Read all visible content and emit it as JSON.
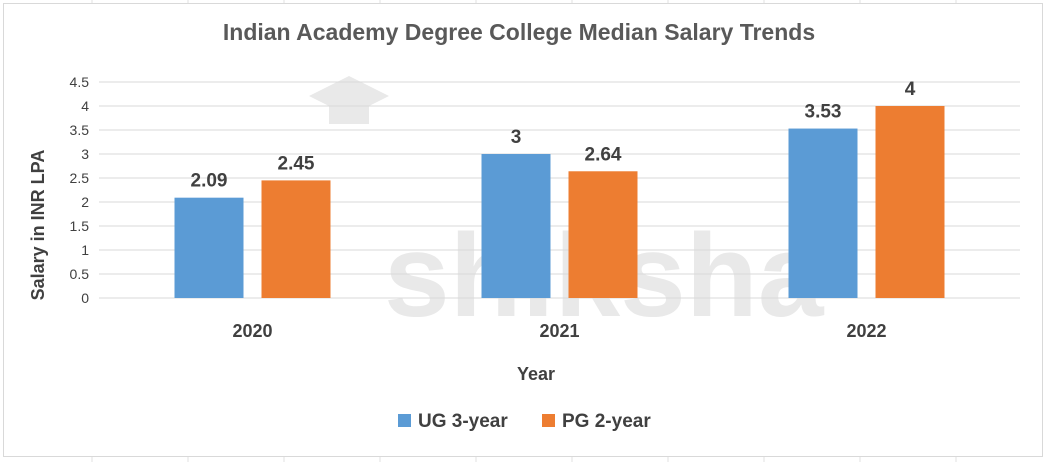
{
  "chart_data": {
    "type": "bar",
    "title": "Indian Academy Degree College Median Salary Trends",
    "xlabel": "Year",
    "ylabel": "Salary in INR LPA",
    "categories": [
      "2020",
      "2021",
      "2022"
    ],
    "series": [
      {
        "name": "UG 3-year",
        "values": [
          2.09,
          3,
          3.53
        ],
        "color": "#5B9BD5"
      },
      {
        "name": "PG 2-year",
        "values": [
          2.45,
          2.64,
          4
        ],
        "color": "#ED7D31"
      }
    ],
    "ylim": [
      0,
      4.5
    ],
    "yticks": [
      "0",
      "0.5",
      "1",
      "1.5",
      "2",
      "2.5",
      "3",
      "3.5",
      "4",
      "4.5"
    ],
    "data_labels": [
      [
        "2.09",
        "3",
        "3.53"
      ],
      [
        "2.45",
        "2.64",
        "4"
      ]
    ],
    "grid": true,
    "legend_position": "bottom"
  },
  "watermark": {
    "text": "shiksha"
  },
  "colors": {
    "gridline": "#d9d9d9",
    "text": "#404040",
    "title": "#595959"
  }
}
